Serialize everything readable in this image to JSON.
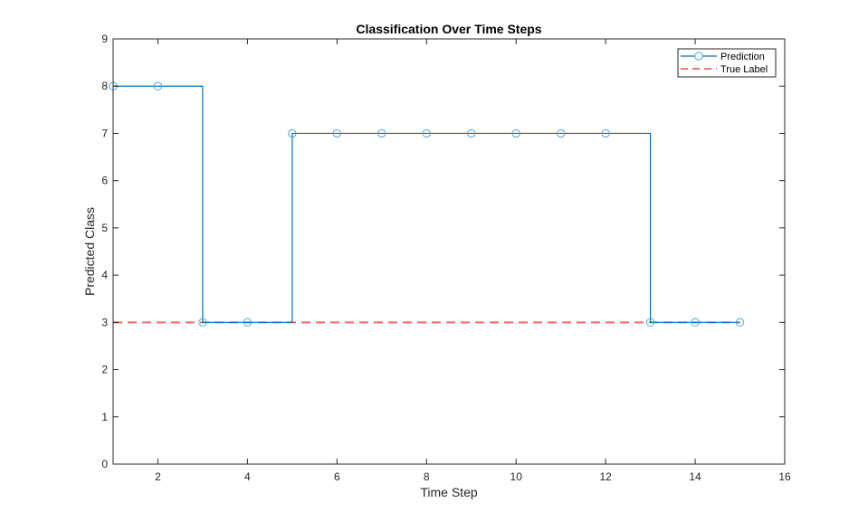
{
  "chart_data": {
    "type": "line",
    "subtype": "stairs",
    "title": "Classification Over Time Steps",
    "xlabel": "Time Step",
    "ylabel": "Predicted Class",
    "xlim": [
      1,
      16
    ],
    "ylim": [
      0,
      9
    ],
    "xticks": [
      2,
      4,
      6,
      8,
      10,
      12,
      14,
      16
    ],
    "yticks": [
      0,
      1,
      2,
      3,
      4,
      5,
      6,
      7,
      8,
      9
    ],
    "grid": false,
    "legend_position": "northeast",
    "x": [
      1,
      2,
      3,
      4,
      5,
      6,
      7,
      8,
      9,
      10,
      11,
      12,
      13,
      14,
      15
    ],
    "series": [
      {
        "name": "Prediction",
        "style": "stairs-with-circle-markers",
        "color": "#0072BD",
        "marker_color": "#4DA6E0",
        "values": [
          8,
          8,
          3,
          3,
          7,
          7,
          7,
          7,
          7,
          7,
          7,
          7,
          3,
          3,
          3
        ]
      },
      {
        "name": "True Label",
        "style": "dashed",
        "color": "#FF6666",
        "values": [
          3,
          3,
          3,
          3,
          3,
          3,
          3,
          3,
          3,
          3,
          3,
          3,
          3,
          3,
          3
        ]
      }
    ]
  }
}
